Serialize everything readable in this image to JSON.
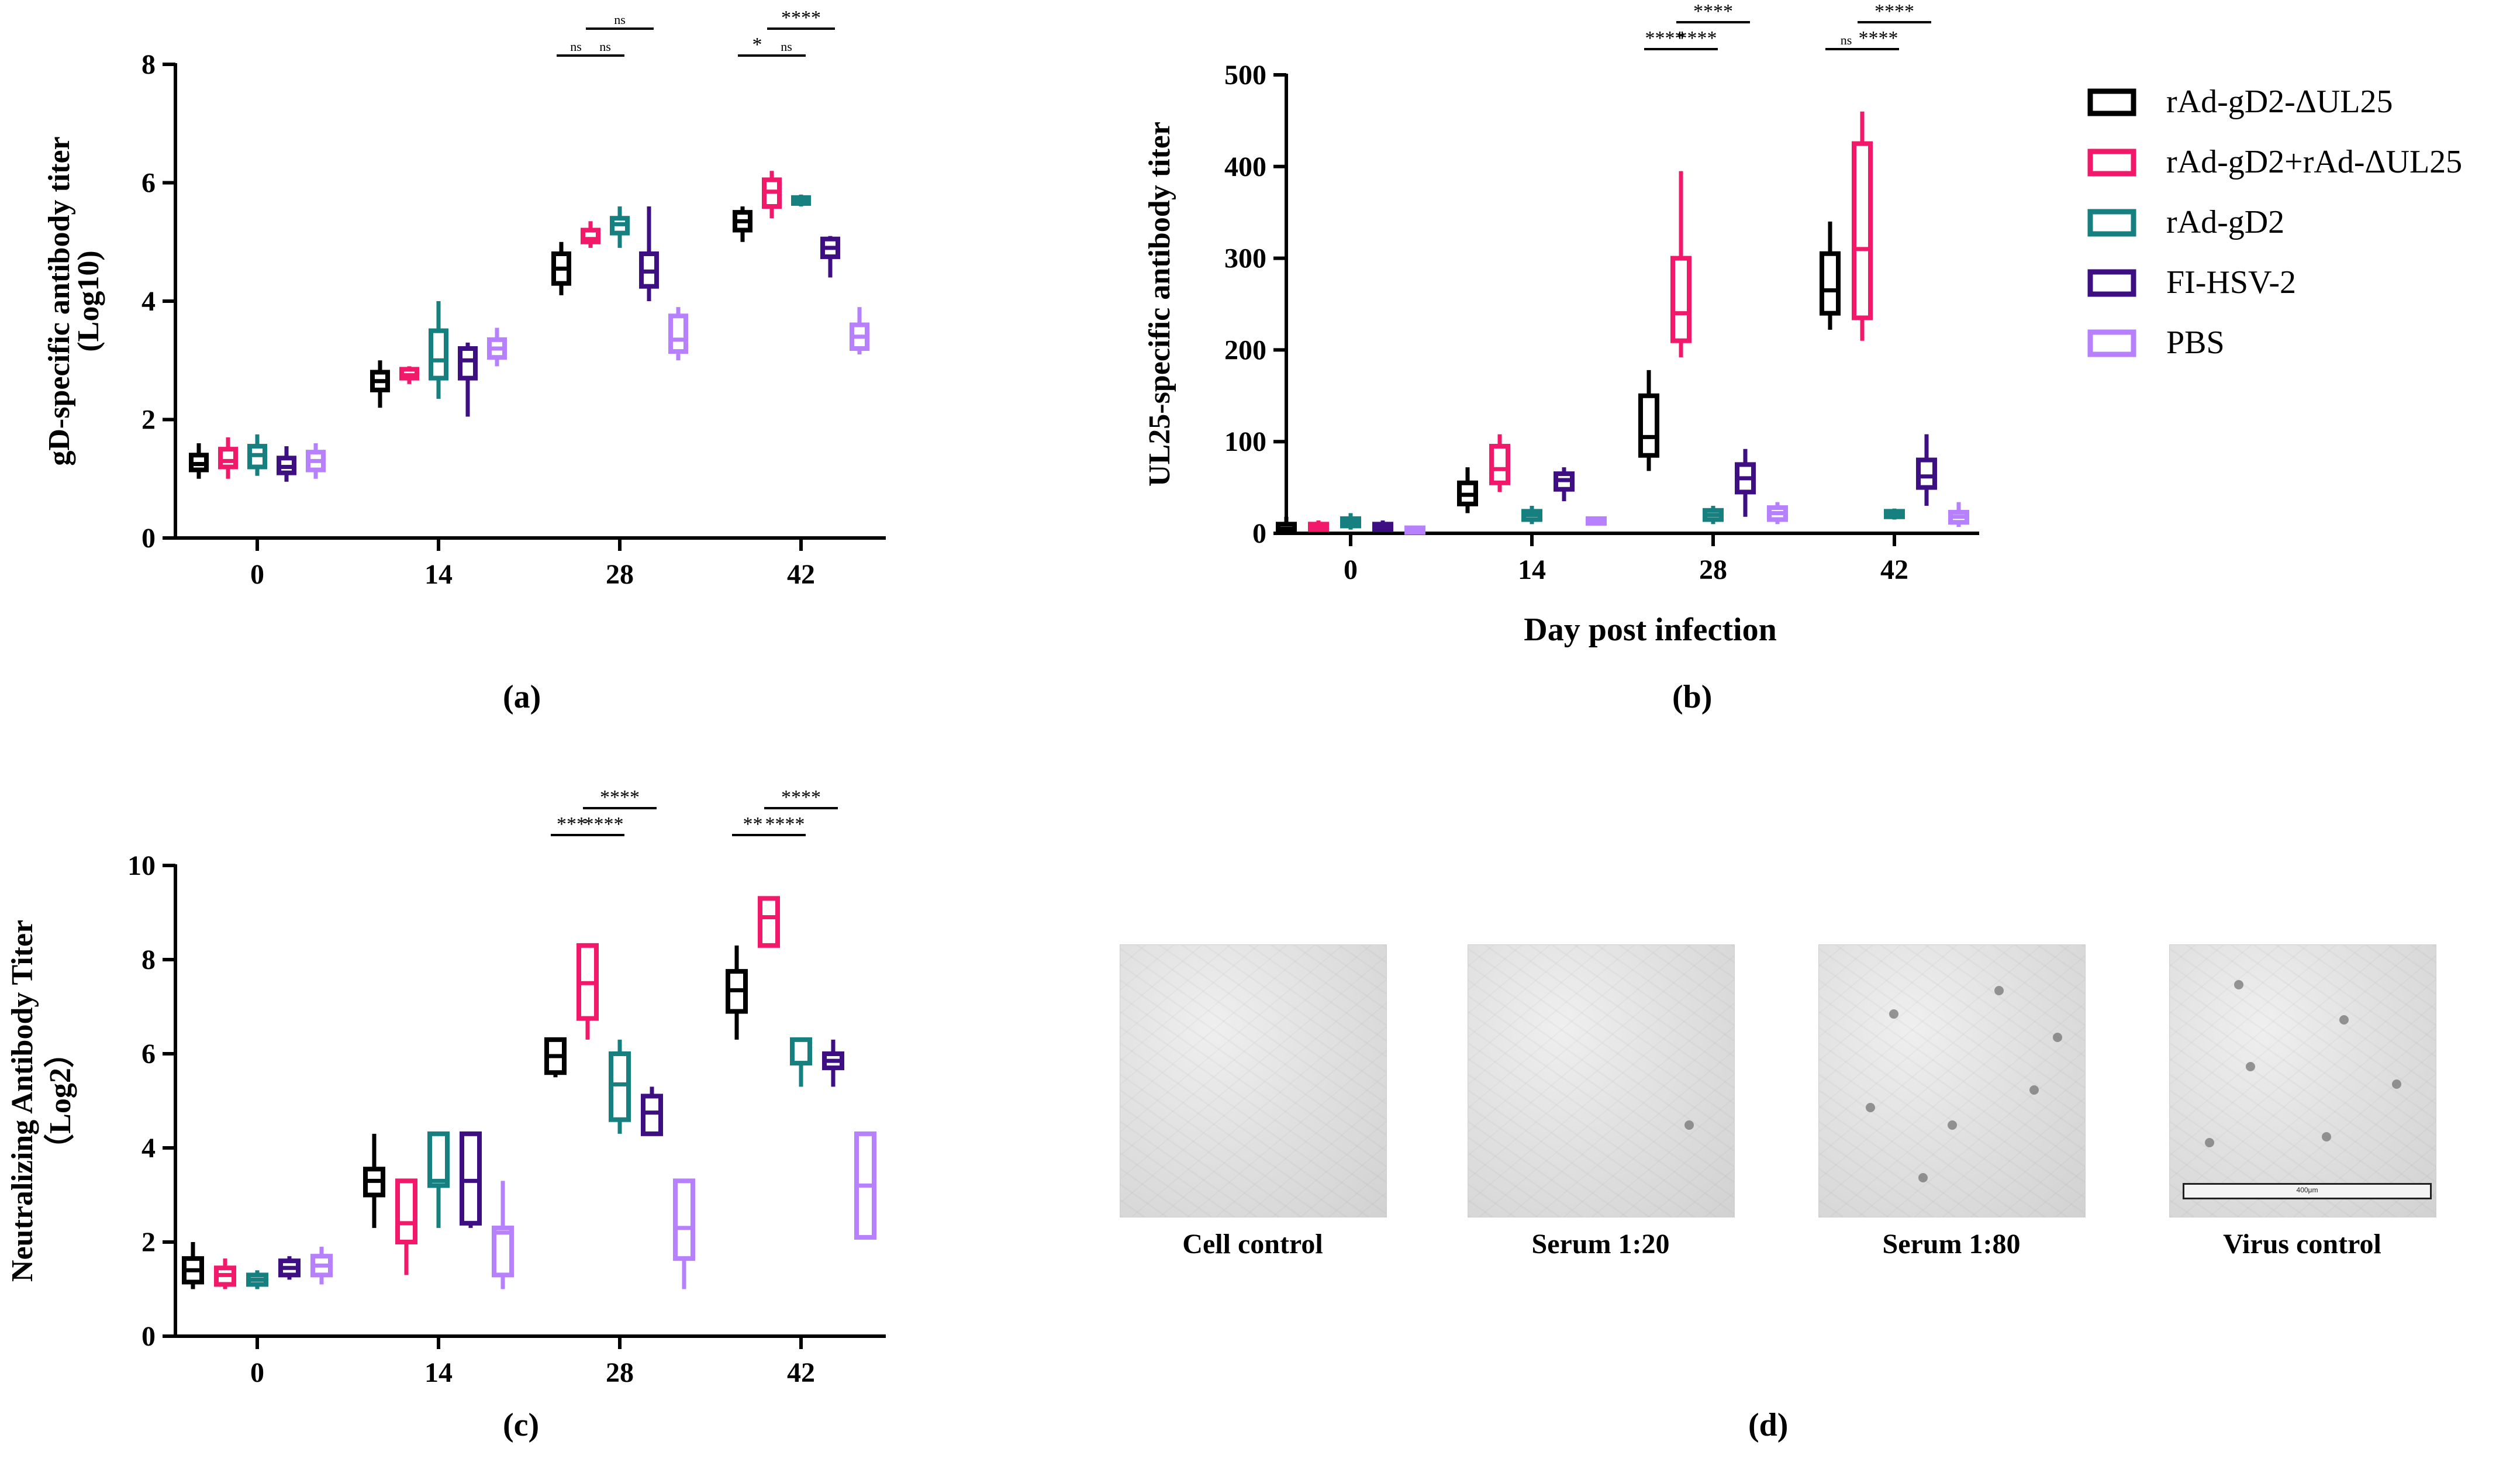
{
  "colors": {
    "rAd-gD2-ΔUL25": "#000000",
    "rAd-gD2+rAd-ΔUL25": "#f2186a",
    "rAd-gD2": "#167f7f",
    "FI-HSV-2": "#3d0f82",
    "PBS": "#b680ff"
  },
  "legend": {
    "items": [
      "rAd-gD2-ΔUL25",
      "rAd-gD2+rAd-ΔUL25",
      "rAd-gD2",
      "FI-HSV-2",
      "PBS"
    ]
  },
  "panels": {
    "a": {
      "label": "(a)"
    },
    "b": {
      "label": "(b)"
    },
    "c": {
      "label": "(c)"
    },
    "d": {
      "label": "(d)",
      "captions": [
        "Cell control",
        "Serum 1:20",
        "Serum 1:80",
        "Virus control"
      ],
      "scale_bar_text": "400μm"
    }
  },
  "chart_data": [
    {
      "type": "box",
      "ylabel": [
        "gD-specific antibody titer",
        "(Log10)"
      ],
      "xlabel": "",
      "ylim": [
        0,
        8
      ],
      "yticks": [
        0,
        2,
        4,
        6,
        8
      ],
      "categories": [
        "0",
        "14",
        "28",
        "42"
      ],
      "series": [
        {
          "name": "rAd-gD2-ΔUL25",
          "boxes": [
            [
              1.0,
              1.15,
              1.25,
              1.4,
              1.6
            ],
            [
              2.2,
              2.5,
              2.65,
              2.8,
              3.0
            ],
            [
              4.1,
              4.3,
              4.55,
              4.8,
              5.0
            ],
            [
              5.0,
              5.2,
              5.35,
              5.5,
              5.6
            ]
          ]
        },
        {
          "name": "rAd-gD2+rAd-ΔUL25",
          "boxes": [
            [
              1.0,
              1.2,
              1.3,
              1.5,
              1.7
            ],
            [
              2.6,
              2.7,
              2.75,
              2.85,
              2.9
            ],
            [
              4.9,
              5.0,
              5.05,
              5.2,
              5.35
            ],
            [
              5.4,
              5.6,
              5.85,
              6.05,
              6.2
            ]
          ]
        },
        {
          "name": "rAd-gD2",
          "boxes": [
            [
              1.05,
              1.2,
              1.4,
              1.55,
              1.75
            ],
            [
              2.35,
              2.7,
              3.0,
              3.5,
              4.0
            ],
            [
              4.9,
              5.15,
              5.3,
              5.4,
              5.6
            ],
            [
              5.6,
              5.65,
              5.7,
              5.75,
              5.8
            ]
          ]
        },
        {
          "name": "FI-HSV-2",
          "boxes": [
            [
              0.95,
              1.1,
              1.2,
              1.35,
              1.55
            ],
            [
              2.05,
              2.7,
              3.0,
              3.2,
              3.3
            ],
            [
              4.0,
              4.25,
              4.5,
              4.8,
              5.6
            ],
            [
              4.4,
              4.75,
              4.9,
              5.05,
              5.1
            ]
          ]
        },
        {
          "name": "PBS",
          "boxes": [
            [
              1.0,
              1.15,
              1.3,
              1.45,
              1.6
            ],
            [
              2.9,
              3.05,
              3.2,
              3.35,
              3.55
            ],
            [
              3.0,
              3.15,
              3.35,
              3.75,
              3.9
            ],
            [
              3.1,
              3.2,
              3.4,
              3.6,
              3.9
            ]
          ]
        }
      ],
      "significance": [
        {
          "category": "28",
          "pairs": [
            [
              0,
              1,
              "ns"
            ],
            [
              1,
              2,
              "ns"
            ],
            [
              1,
              3,
              "ns"
            ]
          ]
        },
        {
          "category": "42",
          "pairs": [
            [
              0,
              1,
              "*"
            ],
            [
              1,
              2,
              "ns"
            ],
            [
              1,
              3,
              "****"
            ]
          ]
        }
      ]
    },
    {
      "type": "box",
      "ylabel": [
        "UL25-specific antibody titer"
      ],
      "xlabel": "Day post infection",
      "ylim": [
        0,
        500
      ],
      "yticks": [
        0,
        100,
        200,
        300,
        400,
        500
      ],
      "categories": [
        "0",
        "14",
        "28",
        "42"
      ],
      "series": [
        {
          "name": "rAd-gD2-ΔUL25",
          "boxes": [
            [
              0,
              2,
              5,
              10,
              18
            ],
            [
              22,
              32,
              42,
              55,
              72
            ],
            [
              68,
              85,
              105,
              150,
              178
            ],
            [
              222,
              240,
              265,
              305,
              340
            ]
          ]
        },
        {
          "name": "rAd-gD2+rAd-ΔUL25",
          "boxes": [
            [
              2,
              4,
              7,
              10,
              14
            ],
            [
              45,
              55,
              70,
              95,
              108
            ],
            [
              192,
              210,
              240,
              300,
              395
            ],
            [
              210,
              235,
              310,
              425,
              460
            ]
          ]
        },
        {
          "name": "rAd-gD2",
          "boxes": [
            [
              4,
              8,
              12,
              16,
              22
            ],
            [
              10,
              15,
              20,
              24,
              30
            ],
            [
              10,
              15,
              20,
              25,
              30
            ],
            [
              15,
              18,
              21,
              24,
              27
            ]
          ]
        },
        {
          "name": "FI-HSV-2",
          "boxes": [
            [
              2,
              4,
              7,
              10,
              14
            ],
            [
              35,
              48,
              58,
              65,
              72
            ],
            [
              18,
              45,
              60,
              75,
              92
            ],
            [
              30,
              50,
              62,
              80,
              108
            ]
          ]
        },
        {
          "name": "PBS",
          "boxes": [
            [
              2,
              3,
              5,
              6,
              8
            ],
            [
              12,
              13,
              15,
              16,
              18
            ],
            [
              10,
              15,
              22,
              28,
              34
            ],
            [
              7,
              12,
              18,
              23,
              34
            ]
          ]
        }
      ],
      "significance": [
        {
          "category": "28",
          "pairs": [
            [
              0,
              1,
              "****"
            ],
            [
              1,
              2,
              "****"
            ],
            [
              1,
              3,
              "****"
            ]
          ]
        },
        {
          "category": "42",
          "pairs": [
            [
              0,
              1,
              "ns"
            ],
            [
              1,
              2,
              "****"
            ],
            [
              1,
              3,
              "****"
            ]
          ]
        }
      ]
    },
    {
      "type": "box",
      "ylabel": [
        "Neutralizing Antibody Titer",
        "（Log2）"
      ],
      "xlabel": "",
      "ylim": [
        0,
        10
      ],
      "yticks": [
        0,
        2,
        4,
        6,
        8,
        10
      ],
      "categories": [
        "0",
        "14",
        "28",
        "42"
      ],
      "series": [
        {
          "name": "rAd-gD2-ΔUL25",
          "boxes": [
            [
              1.0,
              1.15,
              1.4,
              1.65,
              2.0
            ],
            [
              2.3,
              3.0,
              3.3,
              3.55,
              4.3
            ],
            [
              5.5,
              5.6,
              5.95,
              6.3,
              6.3
            ],
            [
              6.3,
              6.9,
              7.35,
              7.75,
              8.3
            ]
          ]
        },
        {
          "name": "rAd-gD2+rAd-ΔUL25",
          "boxes": [
            [
              1.0,
              1.1,
              1.3,
              1.45,
              1.65
            ],
            [
              1.3,
              2.0,
              2.4,
              3.3,
              3.3
            ],
            [
              6.3,
              6.75,
              7.5,
              8.3,
              8.3
            ],
            [
              8.3,
              8.3,
              8.9,
              9.3,
              9.3
            ]
          ]
        },
        {
          "name": "rAd-gD2",
          "boxes": [
            [
              1.0,
              1.1,
              1.2,
              1.3,
              1.4
            ],
            [
              2.3,
              3.2,
              3.3,
              4.3,
              4.3
            ],
            [
              4.3,
              4.6,
              5.35,
              6.0,
              6.3
            ],
            [
              5.3,
              5.8,
              6.3,
              6.3,
              6.3
            ]
          ]
        },
        {
          "name": "FI-HSV-2",
          "boxes": [
            [
              1.2,
              1.3,
              1.45,
              1.6,
              1.7
            ],
            [
              2.3,
              2.4,
              3.3,
              4.3,
              4.3
            ],
            [
              4.3,
              4.3,
              4.75,
              5.1,
              5.3
            ],
            [
              5.3,
              5.7,
              5.85,
              6.0,
              6.3
            ]
          ]
        },
        {
          "name": "PBS",
          "boxes": [
            [
              1.1,
              1.3,
              1.5,
              1.7,
              1.9
            ],
            [
              1.0,
              1.3,
              2.2,
              2.3,
              3.3
            ],
            [
              1.0,
              1.65,
              2.3,
              3.3,
              3.3
            ],
            [
              2.1,
              2.1,
              3.2,
              4.3,
              4.3
            ]
          ]
        }
      ],
      "significance": [
        {
          "category": "28",
          "pairs": [
            [
              0,
              1,
              "***"
            ],
            [
              1,
              2,
              "****"
            ],
            [
              1,
              3,
              "****"
            ]
          ]
        },
        {
          "category": "42",
          "pairs": [
            [
              0,
              1,
              "**"
            ],
            [
              1,
              2,
              "****"
            ],
            [
              1,
              3,
              "****"
            ]
          ]
        }
      ]
    }
  ]
}
